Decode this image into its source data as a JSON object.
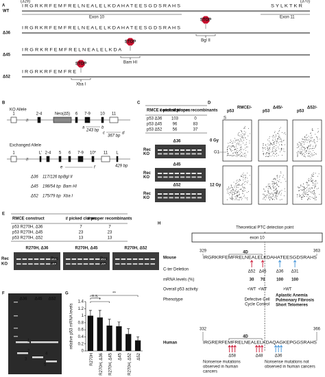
{
  "letters": [
    "A",
    "B",
    "C",
    "D",
    "E",
    "F",
    "G",
    "H"
  ],
  "panel_a": {
    "positions": [
      "(329)",
      "(370)"
    ],
    "stop": "STOP",
    "rows": [
      {
        "label": "WT",
        "protein": "I R G R K R F E M F R E L N E A L E L K D A H A T E E S G D S R A H S",
        "protein_end": "S Y L K T K R",
        "notes": [
          "Exon 10",
          "Exon 11"
        ]
      },
      {
        "label": "Δ36",
        "protein": "I R G R K R F E M F R E L N E A L E L K D A H A T E E S G D S R A H S",
        "site": "Bgl II"
      },
      {
        "label": "Δ45",
        "protein": "I R G R K R F E M F R E L N E A L E L K D A",
        "site": "Bam HI"
      },
      {
        "label": "Δ52",
        "protein": "I R G R K R F E M F R E",
        "site": "Xba I"
      }
    ]
  },
  "panel_b": {
    "ko_allele": {
      "title": "KO Allele",
      "exons": [
        "1",
        "2-4",
        "Neo(Δ5)",
        "6",
        "7-9",
        "10",
        "11"
      ],
      "sizes": [
        "243 bp",
        "367 bp"
      ],
      "primers": [
        "a",
        "b",
        "c",
        "d"
      ]
    },
    "exchanged_allele": {
      "title": "Exchanged Allele",
      "exons": [
        "1",
        "L'",
        "2-4",
        "5",
        "6",
        "7-9",
        "10*",
        "11",
        "L"
      ],
      "size": "429 bp",
      "primers": [
        "e",
        "f"
      ]
    },
    "digests": [
      {
        "label": "Δ36",
        "sizes": "117/126 bp",
        "enzyme": "Bgl II"
      },
      {
        "label": "Δ45",
        "sizes": "198/54 bp",
        "enzyme": "Bam HI"
      },
      {
        "label": "Δ52",
        "sizes": "175/79 bp",
        "enzyme": "Xba I"
      }
    ]
  },
  "panel_c": {
    "headers": [
      "RMCE construct",
      "# picked clones",
      "# proper recombinants"
    ],
    "rows": [
      [
        "p53 Δ36",
        "103",
        "0"
      ],
      [
        "p53 Δ45",
        "96",
        "83"
      ],
      [
        "p53 Δ52",
        "56",
        "37"
      ]
    ],
    "gels": [
      "Δ36",
      "Δ45",
      "Δ52"
    ],
    "gel_labels": [
      "Rec",
      "KO"
    ]
  },
  "panel_d": {
    "columns": [
      {
        "base": "p53",
        "sup": "RMCE/-"
      },
      {
        "base": "p53",
        "sup": "Δ45/-"
      },
      {
        "base": "p53",
        "sup": "Δ52/-"
      }
    ],
    "rows": [
      "0 Gy",
      "12 Gy"
    ],
    "markers": [
      "S",
      "G1"
    ]
  },
  "panel_e": {
    "headers": [
      "RMCE construct",
      "# picked clones",
      "# proper recombinants"
    ],
    "rows": [
      [
        "p53 R270H, Δ36",
        "7",
        "7"
      ],
      [
        "p53 R270H, Δ45",
        "23",
        "23"
      ],
      [
        "p53 R270H, Δ52",
        "13",
        "13"
      ]
    ],
    "gels": [
      "R270H, Δ36",
      "R270H, Δ45",
      "R270H, Δ52"
    ],
    "gel_labels": [
      "Rec",
      "KO"
    ]
  },
  "panel_f": {
    "lanes": [
      "Δ36",
      "Δ45",
      "Δ52"
    ],
    "bands": [
      "1",
      "2",
      "3",
      "4",
      "5"
    ]
  },
  "chart_data": {
    "type": "bar",
    "y_label": "relative p53 mRNA levels",
    "categories": [
      "R270H",
      "R270H, Δ36",
      "R270H, Δ45",
      "Δ45",
      "R270H, Δ52",
      "Δ52"
    ],
    "values": [
      1.0,
      0.95,
      0.72,
      0.7,
      0.48,
      0.3
    ],
    "errors": [
      0.15,
      0.2,
      0.18,
      0.12,
      0.15,
      0.1
    ],
    "color": "#111111",
    "ylim": [
      0,
      1.4
    ],
    "yticks": [
      0,
      0.2,
      0.4,
      0.6,
      0.8,
      1,
      1.2,
      1.4
    ],
    "annotations": [
      "n.s.",
      "*",
      "**"
    ]
  },
  "panel_h": {
    "ptc": "Theoretical PTC detection point",
    "exon": "exon 10",
    "mouse": {
      "label": "Mouse",
      "start": "329",
      "end": "363",
      "domain": "4D",
      "sequence": "IRGRKRFEMFRELNEALELKDAHATEESGDSRAHS"
    },
    "row_labels": [
      "C-ter Deletion",
      "mRNA levels (%)",
      "Overall p53 activity",
      "Phenotype"
    ],
    "deletions": [
      "Δ52",
      "Δ45",
      "Δ36",
      "Δ31"
    ],
    "mrna": [
      "30",
      "70",
      "100",
      "100"
    ],
    "activity": [
      "<WT",
      "<WT",
      ">WT"
    ],
    "phenotype_red": [
      "Defective Cell",
      "Cycle Control"
    ],
    "phenotype_blue": [
      "Aplastic Anemia",
      "Pulmonary Fibrosis",
      "Short Telomeres"
    ],
    "human": {
      "label": "Human",
      "start": "332",
      "end": "366",
      "domain": "4D",
      "sequence": "IRGRERFEMFRELNEALELKDAQAGKEPGGSRAHS"
    },
    "human_deletions": [
      "Δ58",
      "Δ48",
      "Δ36"
    ],
    "notes_red": [
      "Nonsense mutations",
      "observed in human",
      "cancers"
    ],
    "notes_blue": [
      "Nonsense mutations not",
      "observed in human cancers"
    ]
  }
}
